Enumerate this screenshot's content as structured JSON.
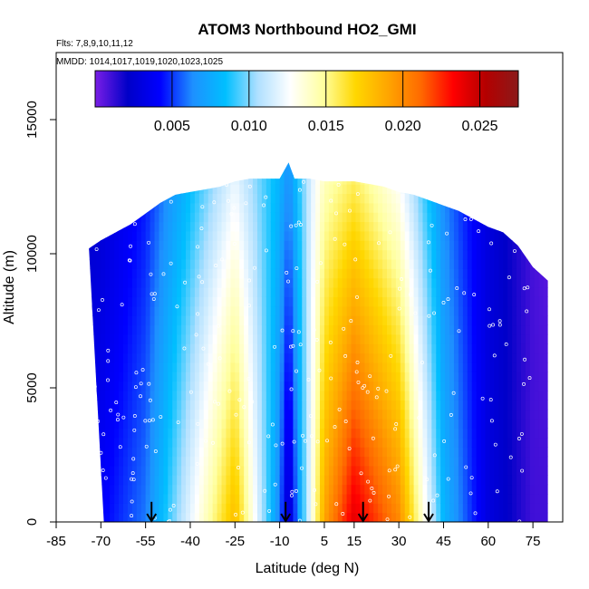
{
  "chart_data": {
    "type": "heatmap",
    "title": "ATOM3 Northbound HO2_GMI",
    "flights_note": "Flts: 7,8,9,10,11,12",
    "dates_note": "MMDD: 1014,1017,1019,1020,1023,1025",
    "xlabel": "Latitude (deg N)",
    "ylabel": "Altitude (m)",
    "xlim": [
      -85,
      85
    ],
    "ylim": [
      0,
      17500
    ],
    "x_ticks": [
      "-85",
      "-70",
      "-55",
      "-40",
      "-25",
      "-10",
      "5",
      "15",
      "30",
      "45",
      "60",
      "75"
    ],
    "x_tick_values": [
      -85,
      -70,
      -55,
      -40,
      -25,
      -10,
      5,
      15,
      30,
      45,
      60,
      75
    ],
    "y_ticks": [
      "0",
      "5000",
      "10000",
      "15000"
    ],
    "y_tick_values": [
      0,
      5000,
      10000,
      15000
    ],
    "colorbar": {
      "min": 0.0,
      "max": 0.0275,
      "ticks": [
        "0.005",
        "0.010",
        "0.015",
        "0.020",
        "0.025"
      ],
      "tick_values": [
        0.005,
        0.01,
        0.015,
        0.02,
        0.025
      ],
      "colors": [
        "#7a1ee6",
        "#0000c8",
        "#0000ff",
        "#1e90ff",
        "#00bfff",
        "#b0e0ff",
        "#ffffff",
        "#ffffa0",
        "#ffd700",
        "#ffa500",
        "#ff6a00",
        "#ff0000",
        "#b40000",
        "#8b1a1a"
      ]
    },
    "profiles": {
      "latitude": [
        -74,
        -70,
        -65,
        -60,
        -55,
        -50,
        -45,
        -40,
        -35,
        -30,
        -25,
        -20,
        -15,
        -10,
        -7,
        -5,
        0,
        5,
        10,
        15,
        20,
        25,
        30,
        35,
        40,
        45,
        50,
        55,
        60,
        65,
        70,
        75,
        80
      ],
      "top_altitude": [
        10200,
        10500,
        10800,
        11100,
        11500,
        11900,
        12200,
        12300,
        12400,
        12500,
        12700,
        12800,
        12800,
        12800,
        13400,
        12800,
        12800,
        12700,
        12700,
        12700,
        12600,
        12500,
        12300,
        12200,
        12000,
        11800,
        11600,
        11300,
        11000,
        10800,
        10300,
        9500,
        9000
      ],
      "bottom_edge_latitude": -69,
      "surface_peak_ho2": {
        "latitude": [
          -70,
          -55,
          -40,
          -25,
          -10,
          -7,
          5,
          15,
          30,
          45,
          60,
          75
        ],
        "ho2": [
          0.004,
          0.006,
          0.012,
          0.018,
          0.006,
          0.002,
          0.019,
          0.024,
          0.02,
          0.008,
          0.003,
          0.001
        ]
      }
    },
    "arrows_latitude": [
      -53,
      -8,
      18,
      40
    ],
    "grid": false,
    "legend": "colorbar-top"
  }
}
